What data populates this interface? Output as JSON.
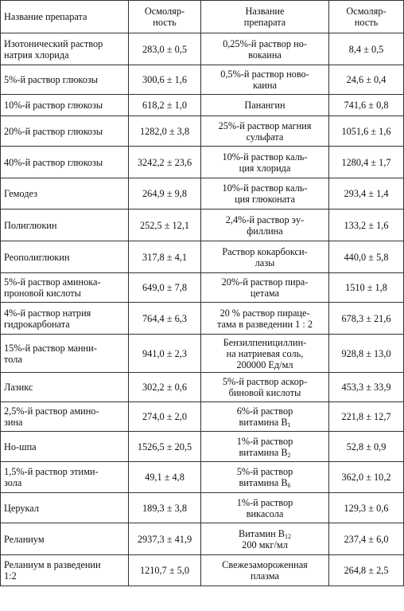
{
  "headers": {
    "name_1": "Название препарата",
    "osm_1": "Осмоляр-\nность",
    "name_2": "Название\nпрепарата",
    "osm_2": "Осмоляр-\nность"
  },
  "rows": [
    {
      "n1": "Изотонический раствор натрия хлорида",
      "v1": "283,0 ± 0,5",
      "n2": "0,25%-й раствор но-\nвокаина",
      "v2": "8,4 ± 0,5"
    },
    {
      "n1": "5%-й раствор глюкозы",
      "v1": "300,6 ± 1,6",
      "n2": "0,5%-й раствор ново-\nкаина",
      "v2": "24,6 ± 0,4"
    },
    {
      "n1": "10%-й раствор глюкозы",
      "v1": "618,2 ± 1,0",
      "n2": "Панангин",
      "v2": "741,6 ± 0,8"
    },
    {
      "n1": "20%-й раствор глюкозы",
      "v1": "1282,0 ± 3,8",
      "n2": "25%-й раствор магния\nсульфата",
      "v2": "1051,6 ± 1,6"
    },
    {
      "n1": "40%-й раствор глюкозы",
      "v1": "3242,2 ± 23,6",
      "n2": "10%-й раствор каль-\nция хлорида",
      "v2": "1280,4 ± 1,7"
    },
    {
      "n1": "Гемодез",
      "v1": "264,9 ± 9,8",
      "n2": "10%-й раствор каль-\nция глюконата",
      "v2": "293,4 ± 1,4"
    },
    {
      "n1": "Полиглюкин",
      "v1": "252,5 ± 12,1",
      "n2": "2,4%-й раствор эу-\nфиллина",
      "v2": "133,2 ± 1,6"
    },
    {
      "n1": "Реополиглюкин",
      "v1": "317,8 ± 4,1",
      "n2": "Раствор кокарбокси-\nлазы",
      "v2": "440,0 ± 5,8"
    },
    {
      "n1": "5%-й раствор аминока-\nпроновой кислоты",
      "v1": "649,0 ± 7,8",
      "n2": "20%-й раствор пира-\nцетама",
      "v2": "1510 ± 1,8"
    },
    {
      "n1": "4%-й раствор натрия\nгидрокарбоната",
      "v1": "764,4 ± 6,3",
      "n2": "20 % раствор пираце-\nтама в разведении 1 : 2",
      "v2": "678,3 ± 21,6"
    },
    {
      "n1": "15%-й раствор манни-\nтола",
      "v1": "941,0 ± 2,3",
      "n2": "Бензилпенициллин-\nна натриевая соль,\n200000 Ед/мл",
      "v2": "928,8 ± 13,0"
    },
    {
      "n1": "Лазикс",
      "v1": "302,2 ± 0,6",
      "n2": "5%-й раствор аскор-\nбиновой кислоты",
      "v2": "453,3 ± 33,9"
    },
    {
      "n1": "2,5%-й раствор амино-\nзина",
      "v1": "274,0 ± 2,0",
      "n2": "6%-й раствор\nвитамина B",
      "n2sub": "1",
      "v2": "221,8 ± 12,7"
    },
    {
      "n1": "Но-шпа",
      "v1": "1526,5 ± 20,5",
      "n2": "1%-й раствор\nвитамина B",
      "n2sub": "2",
      "v2": "52,8 ± 0,9"
    },
    {
      "n1": "1,5%-й раствор этими-\nзола",
      "v1": "49,1 ± 4,8",
      "n2": "5%-й раствор\nвитамина B",
      "n2sub": "6",
      "v2": "362,0 ± 10,2"
    },
    {
      "n1": "Церукал",
      "v1": "189,3 ± 3,8",
      "n2": "1%-й раствор\nвикасола",
      "v2": "129,3 ± 0,6"
    },
    {
      "n1": "Реланиум",
      "v1": "2937,3 ± 41,9",
      "n2a": "Витамин B",
      "n2asub": "12",
      "n2b": "200 мкг/мл",
      "v2": "237,4 ± 6,0"
    },
    {
      "n1": "Реланиум в разведении\n1:2",
      "v1": "1210,7 ± 5,0",
      "n2": "Свежезамороженная\nплазма",
      "v2": "264,8 ± 2,5"
    }
  ]
}
